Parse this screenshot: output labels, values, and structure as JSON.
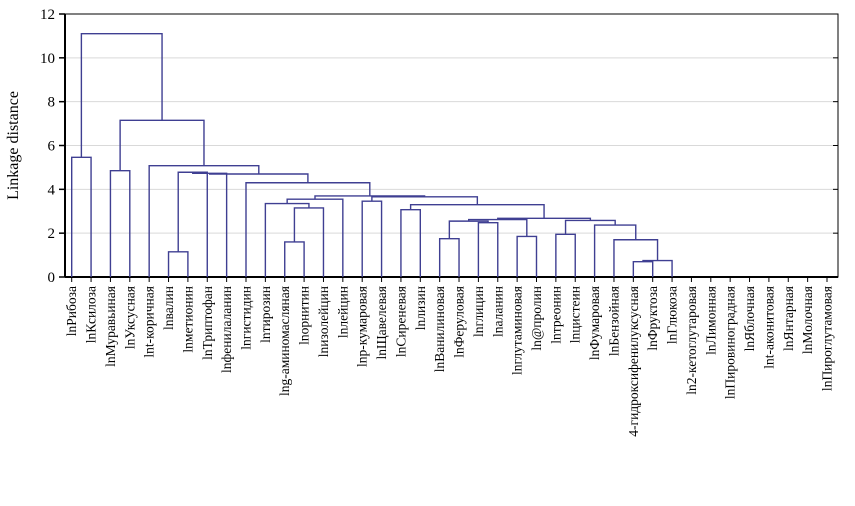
{
  "chart_data": {
    "type": "dendrogram",
    "title": "",
    "ylabel": "Linkage distance",
    "ylim": [
      0,
      12
    ],
    "yticks": [
      0,
      2,
      4,
      6,
      8,
      10,
      12
    ],
    "grid": true,
    "legend": "none",
    "line_color": "#3f3f92",
    "axis_color": "#000000",
    "grid_color": "#d9d9d9",
    "leaves": [
      "lnРибоза",
      "lnКсилоза",
      "lnМуравьиная",
      "lnУксусная",
      "lnt-коричная",
      "lnвалин",
      "lnметионин",
      "lnТриптофан",
      "lnфенилаланин",
      "lnгистидин",
      "lnтирозин",
      "lng-аминомасляная",
      "lnорнитин",
      "lnизолейцин",
      "lnлейцин",
      "lnp-кумаровая",
      "lnЩавелевая",
      "lnСиреневая",
      "lnлизин",
      "lnВанилиновая",
      "lnФеруловая",
      "lnглицин",
      "lnаланин",
      "lnглутаминовая",
      "ln@пролин",
      "lnтреонин",
      "lnцистеин",
      "lnФумаровая",
      "lnБензойная",
      "4-гидроксифенилуксусная",
      "lnФруктоза",
      "lnГлюкоза",
      "ln2-кетоглутаровая",
      "lnЛимонная",
      "lnПировиноградная",
      "lnЯблочная",
      "lnt-аконитовая",
      "lnЯнтарная",
      "lnМолочная",
      "lnПироглутамовая"
    ],
    "unlinked_leaves": [
      "ln2-кетоглутаровая",
      "lnЛимонная",
      "lnПировиноградная",
      "lnЯблочная",
      "lnt-аконитовая",
      "lnЯнтарная",
      "lnМолочная",
      "lnПироглутамовая"
    ],
    "merges": [
      {
        "a": "L0",
        "b": "L1",
        "h": 5.46
      },
      {
        "a": "L2",
        "b": "L3",
        "h": 4.85
      },
      {
        "a": "L5",
        "b": "L6",
        "h": 1.15
      },
      {
        "a": "M2",
        "b": "L7",
        "h": 4.78
      },
      {
        "a": "M3",
        "b": "L8",
        "h": 4.73
      },
      {
        "a": "L11",
        "b": "L12",
        "h": 1.6
      },
      {
        "a": "M5",
        "b": "L13",
        "h": 3.15
      },
      {
        "a": "L10",
        "b": "M6",
        "h": 3.35
      },
      {
        "a": "M7",
        "b": "L14",
        "h": 3.55
      },
      {
        "a": "L15",
        "b": "L16",
        "h": 3.46
      },
      {
        "a": "L17",
        "b": "L18",
        "h": 3.07
      },
      {
        "a": "L19",
        "b": "L20",
        "h": 1.75
      },
      {
        "a": "L21",
        "b": "L22",
        "h": 2.48
      },
      {
        "a": "M11",
        "b": "M12",
        "h": 2.55
      },
      {
        "a": "L23",
        "b": "L24",
        "h": 1.85
      },
      {
        "a": "M13",
        "b": "M14",
        "h": 2.62
      },
      {
        "a": "L25",
        "b": "L26",
        "h": 1.95
      },
      {
        "a": "L29",
        "b": "L30",
        "h": 0.7
      },
      {
        "a": "M17",
        "b": "L31",
        "h": 0.75
      },
      {
        "a": "L28",
        "b": "M18",
        "h": 1.7
      },
      {
        "a": "L27",
        "b": "M19",
        "h": 2.37
      },
      {
        "a": "M16",
        "b": "M20",
        "h": 2.58
      },
      {
        "a": "M15",
        "b": "M21",
        "h": 2.68
      },
      {
        "a": "M10",
        "b": "M22",
        "h": 3.3
      },
      {
        "a": "M9",
        "b": "M23",
        "h": 3.66
      },
      {
        "a": "M8",
        "b": "M24",
        "h": 3.7
      },
      {
        "a": "L9",
        "b": "M25",
        "h": 4.3
      },
      {
        "a": "M4",
        "b": "M26",
        "h": 4.7
      },
      {
        "a": "L4",
        "b": "M27",
        "h": 5.08
      },
      {
        "a": "M1",
        "b": "M28",
        "h": 7.15
      },
      {
        "a": "M0",
        "b": "M29",
        "h": 11.1
      }
    ]
  }
}
